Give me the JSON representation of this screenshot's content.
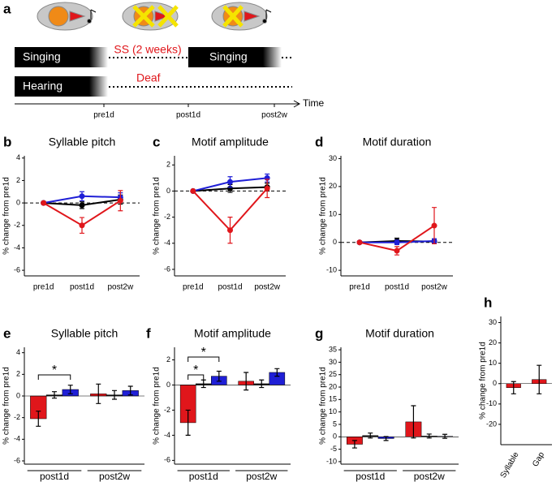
{
  "schematic": {
    "label": "a",
    "singing_1": "Singing",
    "surgery": "SS (2 weeks)",
    "singing_2": "Singing",
    "hearing": "Hearing",
    "deaf": "Deaf",
    "timepoints": [
      "pre1d",
      "post1d",
      "post2w"
    ],
    "axis_label": "Time"
  },
  "chart_data": [
    {
      "type": "line",
      "label": "b",
      "title": "Syllable pitch",
      "y_label": "% change from pre1d",
      "categories": [
        "pre1d",
        "post1d",
        "post2w"
      ],
      "series": [
        {
          "color": "#000000",
          "values": [
            0,
            -0.2,
            0.3
          ],
          "errors": [
            0,
            0.3,
            0.4
          ]
        },
        {
          "color": "#1f1fd6",
          "values": [
            0,
            0.6,
            0.5
          ],
          "errors": [
            0,
            0.4,
            0.4
          ]
        },
        {
          "color": "#e0161b",
          "values": [
            0,
            -2,
            0.2
          ],
          "errors": [
            0,
            0.7,
            0.9
          ]
        }
      ],
      "ylim": [
        -6.5,
        4.2
      ],
      "yticks": [
        -6,
        -4,
        -2,
        0,
        2,
        4
      ]
    },
    {
      "type": "line",
      "label": "c",
      "title": "Motif amplitude",
      "y_label": "% change from pre1d",
      "categories": [
        "pre1d",
        "post1d",
        "post2w"
      ],
      "series": [
        {
          "color": "#000000",
          "values": [
            0,
            0.2,
            0.3
          ],
          "errors": [
            0,
            0.3,
            0.3
          ]
        },
        {
          "color": "#1f1fd6",
          "values": [
            0,
            0.7,
            1
          ],
          "errors": [
            0,
            0.4,
            0.3
          ]
        },
        {
          "color": "#e0161b",
          "values": [
            0,
            -3,
            0.2
          ],
          "errors": [
            0,
            1,
            0.7
          ]
        }
      ],
      "ylim": [
        -6.5,
        2.7
      ],
      "yticks": [
        -6,
        -4,
        -2,
        0,
        2
      ]
    },
    {
      "type": "line",
      "label": "d",
      "title": "Motif duration",
      "y_label": "% change from pre1d",
      "categories": [
        "pre1d",
        "post1d",
        "post2w"
      ],
      "series": [
        {
          "color": "#000000",
          "values": [
            0,
            0.5,
            0.3
          ],
          "errors": [
            0,
            1,
            0.8
          ]
        },
        {
          "color": "#1f1fd6",
          "values": [
            0,
            0,
            0.5
          ],
          "errors": [
            0,
            0.8,
            0.8
          ]
        },
        {
          "color": "#e0161b",
          "values": [
            0,
            -3,
            6
          ],
          "errors": [
            0,
            1.5,
            6.5
          ]
        }
      ],
      "ylim": [
        -12,
        31
      ],
      "yticks": [
        -10,
        0,
        10,
        20,
        30
      ]
    },
    {
      "type": "bar",
      "label": "e",
      "title": "Syllable pitch",
      "y_label": "% change from pre1d",
      "categories": [
        "post1d",
        "post2w"
      ],
      "series": [
        {
          "color": "#e0161b",
          "values": [
            -2.1,
            0.2
          ],
          "errors": [
            0.7,
            0.9
          ]
        },
        {
          "color": "#111111",
          "values": [
            0.1,
            0.1
          ],
          "errors": [
            0.3,
            0.4
          ]
        },
        {
          "color": "#1f1fd6",
          "values": [
            0.6,
            0.5
          ],
          "errors": [
            0.4,
            0.4
          ]
        }
      ],
      "ylim": [
        -6.3,
        4.5
      ],
      "yticks": [
        -6,
        -4,
        -2,
        0,
        2,
        4
      ],
      "annotations": [
        "*"
      ]
    },
    {
      "type": "bar",
      "label": "f",
      "title": "Motif amplitude",
      "y_label": "% change from pre1d",
      "categories": [
        "post1d",
        "post2w"
      ],
      "series": [
        {
          "color": "#e0161b",
          "values": [
            -3,
            0.3
          ],
          "errors": [
            1,
            0.7
          ]
        },
        {
          "color": "#111111",
          "values": [
            0.1,
            0.1
          ],
          "errors": [
            0.3,
            0.3
          ]
        },
        {
          "color": "#1f1fd6",
          "values": [
            0.7,
            1
          ],
          "errors": [
            0.4,
            0.3
          ]
        }
      ],
      "ylim": [
        -6.3,
        3
      ],
      "yticks": [
        -6,
        -4,
        -2,
        0,
        2
      ],
      "annotations": [
        "*",
        "*"
      ]
    },
    {
      "type": "bar",
      "label": "g",
      "title": "Motif duration",
      "y_label": "% change from pre1d",
      "categories": [
        "post1d",
        "post2w"
      ],
      "series": [
        {
          "color": "#e0161b",
          "values": [
            -3,
            6
          ],
          "errors": [
            1.5,
            6.5
          ]
        },
        {
          "color": "#111111",
          "values": [
            0.5,
            0.3
          ],
          "errors": [
            1,
            0.8
          ]
        },
        {
          "color": "#1f1fd6",
          "values": [
            -0.7,
            0.2
          ],
          "errors": [
            0.8,
            0.8
          ]
        }
      ],
      "ylim": [
        -11,
        36
      ],
      "yticks": [
        -10,
        -5,
        0,
        5,
        10,
        15,
        20,
        25,
        30,
        35
      ]
    },
    {
      "type": "bar",
      "label": "h",
      "y_label": "% change from pre1d",
      "categories": [
        "Syllable",
        "Gap"
      ],
      "series": [
        {
          "color": "#e0161b",
          "values": [
            -2,
            2
          ],
          "errors": [
            3,
            7
          ]
        }
      ],
      "ylim": [
        -30,
        33
      ],
      "yticks": [
        -20,
        -10,
        0,
        10,
        20,
        30
      ]
    }
  ]
}
